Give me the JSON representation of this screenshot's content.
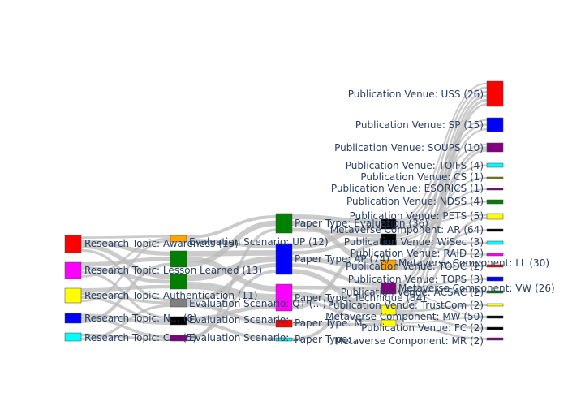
{
  "chart_data": {
    "type": "sankey",
    "columns": [
      {
        "nodes": [
          {
            "id": "rt_awareness",
            "label": "Research Topic: Awareness (15)",
            "color": "#ff0000"
          },
          {
            "id": "rt_lesson",
            "label": "Research Topic: Lesson Learned (13)",
            "color": "#ff00ff"
          },
          {
            "id": "rt_auth",
            "label": "Research Topic: Authentication (11)",
            "color": "#ffff00"
          },
          {
            "id": "rt_n",
            "label": "Research Topic: N… (8)",
            "color": "#0000ff"
          },
          {
            "id": "rt_c",
            "label": "Research Topic: C… (5)",
            "color": "#00ffff"
          }
        ]
      },
      {
        "nodes": [
          {
            "id": "es_up",
            "label": "Evaluation Scenario: UP (12)",
            "color": "#ffa500"
          },
          {
            "id": "es_g1",
            "label": "",
            "color": "#008000"
          },
          {
            "id": "es_g2",
            "label": "",
            "color": "#008000"
          },
          {
            "id": "es_qt",
            "label": "Evaluation Scenario: QT (…)",
            "color": "#808080"
          },
          {
            "id": "es_k",
            "label": "Evaluation Scenario: …",
            "color": "#000000"
          },
          {
            "id": "es_p",
            "label": "Evaluation Scenario: …",
            "color": "#800080"
          }
        ]
      },
      {
        "nodes": [
          {
            "id": "pt_eval",
            "label": "Paper Type: Evaluation (36)",
            "color": "#008000"
          },
          {
            "id": "pt_ap",
            "label": "Paper Type: AP (74)",
            "color": "#0000ff"
          },
          {
            "id": "pt_tech",
            "label": "Paper Type: Technique (34)",
            "color": "#ff00ff"
          },
          {
            "id": "pt_r",
            "label": "Paper Type: M…",
            "color": "#ff0000"
          },
          {
            "id": "pt_c",
            "label": "Paper Type: …",
            "color": "#00ffff"
          }
        ]
      },
      {
        "nodes": [
          {
            "id": "mc_k1",
            "label": "",
            "color": "#000000"
          },
          {
            "id": "mc_k2",
            "label": "",
            "color": "#000000"
          },
          {
            "id": "mc_ll",
            "label": "Metaverse Component: LL (30)",
            "color": "#ffa500"
          },
          {
            "id": "mc_vw",
            "label": "Metaverse Component: VW (26)",
            "color": "#800080"
          },
          {
            "id": "mc_y",
            "label": "",
            "color": "#ffff00"
          },
          {
            "id": "mc_y2",
            "label": "",
            "color": "#ffff00"
          }
        ]
      },
      {
        "nodes": [
          {
            "id": "pv_uss",
            "label": "Publication Venue: USS (26)",
            "color": "#ff0000"
          },
          {
            "id": "pv_sp",
            "label": "Publication Venue: SP (15)",
            "color": "#0000ff"
          },
          {
            "id": "pv_soups",
            "label": "Publication Venue: SOUPS (10)",
            "color": "#800080"
          },
          {
            "id": "pv_toifs",
            "label": "Publication Venue: TOIFS (4)",
            "color": "#00ffff"
          },
          {
            "id": "pv_cs",
            "label": "Publication Venue: CS (1)",
            "color": "#808000"
          },
          {
            "id": "pv_esorics",
            "label": "Publication Venue: ESORICS (1)",
            "color": "#800080"
          },
          {
            "id": "pv_ndss",
            "label": "Publication Venue: NDSS (4)",
            "color": "#008000"
          },
          {
            "id": "pv_pets",
            "label": "Publication Venue: PETS (5)",
            "color": "#ffff00"
          },
          {
            "id": "pv_ar",
            "label": "Metaverse Component: AR (64)",
            "color": "#000000"
          },
          {
            "id": "pv_wisec",
            "label": "Publication Venue: WiSec (3)",
            "color": "#00ffff"
          },
          {
            "id": "pv_raid",
            "label": "Publication Venue: RAID (2)",
            "color": "#ff00ff"
          },
          {
            "id": "pv_todc",
            "label": "Publication Venue: TODC (2)",
            "color": "#ff0000"
          },
          {
            "id": "pv_tops",
            "label": "Publication Venue: TOPS (3)",
            "color": "#0000ff"
          },
          {
            "id": "pv_acsac",
            "label": "Publication Venue: ACSAC (2)",
            "color": "#008000"
          },
          {
            "id": "pv_trustcom",
            "label": "Publication Venue: TrustCom (2)",
            "color": "#ffff00"
          },
          {
            "id": "pv_mw",
            "label": "Metaverse Component: MW (50)",
            "color": "#000000"
          },
          {
            "id": "pv_fc",
            "label": "Publication Venue: FC (2)",
            "color": "#000000"
          },
          {
            "id": "pv_mr",
            "label": "Metaverse Component: MR (2)",
            "color": "#800080"
          }
        ]
      }
    ],
    "links": [
      [
        "rt_awareness",
        "es_up"
      ],
      [
        "rt_awareness",
        "es_g1"
      ],
      [
        "rt_awareness",
        "es_g2"
      ],
      [
        "rt_awareness",
        "es_qt"
      ],
      [
        "rt_lesson",
        "es_g1"
      ],
      [
        "rt_lesson",
        "es_g2"
      ],
      [
        "rt_lesson",
        "es_k"
      ],
      [
        "rt_lesson",
        "es_up"
      ],
      [
        "rt_auth",
        "es_g2"
      ],
      [
        "rt_auth",
        "es_qt"
      ],
      [
        "rt_auth",
        "es_k"
      ],
      [
        "rt_auth",
        "es_up"
      ],
      [
        "rt_n",
        "es_k"
      ],
      [
        "rt_n",
        "es_p"
      ],
      [
        "rt_n",
        "es_g1"
      ],
      [
        "rt_c",
        "es_p"
      ],
      [
        "rt_c",
        "es_qt"
      ],
      [
        "es_up",
        "pt_eval"
      ],
      [
        "es_up",
        "pt_ap"
      ],
      [
        "es_g1",
        "pt_ap"
      ],
      [
        "es_g1",
        "pt_tech"
      ],
      [
        "es_g1",
        "pt_eval"
      ],
      [
        "es_g2",
        "pt_ap"
      ],
      [
        "es_g2",
        "pt_tech"
      ],
      [
        "es_qt",
        "pt_ap"
      ],
      [
        "es_qt",
        "pt_r"
      ],
      [
        "es_k",
        "pt_tech"
      ],
      [
        "es_k",
        "pt_c"
      ],
      [
        "es_p",
        "pt_ap"
      ],
      [
        "es_p",
        "pt_eval"
      ],
      [
        "pt_eval",
        "mc_k1"
      ],
      [
        "pt_eval",
        "mc_ll"
      ],
      [
        "pt_eval",
        "mc_k2"
      ],
      [
        "pt_ap",
        "mc_k1"
      ],
      [
        "pt_ap",
        "mc_k2"
      ],
      [
        "pt_ap",
        "mc_ll"
      ],
      [
        "pt_ap",
        "mc_vw"
      ],
      [
        "pt_ap",
        "mc_y"
      ],
      [
        "pt_tech",
        "mc_vw"
      ],
      [
        "pt_tech",
        "mc_y"
      ],
      [
        "pt_tech",
        "mc_y2"
      ],
      [
        "pt_tech",
        "mc_k2"
      ],
      [
        "pt_r",
        "mc_y2"
      ],
      [
        "pt_c",
        "mc_vw"
      ],
      [
        "mc_k1",
        "pv_uss"
      ],
      [
        "mc_k1",
        "pv_sp"
      ],
      [
        "mc_k1",
        "pv_soups"
      ],
      [
        "mc_k1",
        "pv_toifs"
      ],
      [
        "mc_k1",
        "pv_ndss"
      ],
      [
        "mc_k1",
        "pv_pets"
      ],
      [
        "mc_k2",
        "pv_uss"
      ],
      [
        "mc_k2",
        "pv_sp"
      ],
      [
        "mc_k2",
        "pv_cs"
      ],
      [
        "mc_k2",
        "pv_esorics"
      ],
      [
        "mc_k2",
        "pv_wisec"
      ],
      [
        "mc_k2",
        "pv_raid"
      ],
      [
        "mc_ll",
        "pv_uss"
      ],
      [
        "mc_ll",
        "pv_sp"
      ],
      [
        "mc_ll",
        "pv_soups"
      ],
      [
        "mc_ll",
        "pv_ar"
      ],
      [
        "mc_ll",
        "pv_todc"
      ],
      [
        "mc_vw",
        "pv_uss"
      ],
      [
        "mc_vw",
        "pv_soups"
      ],
      [
        "mc_vw",
        "pv_tops"
      ],
      [
        "mc_vw",
        "pv_acsac"
      ],
      [
        "mc_vw",
        "pv_mw"
      ],
      [
        "mc_y",
        "pv_uss"
      ],
      [
        "mc_y",
        "pv_pets"
      ],
      [
        "mc_y",
        "pv_trustcom"
      ],
      [
        "mc_y",
        "pv_fc"
      ],
      [
        "mc_y2",
        "pv_uss"
      ],
      [
        "mc_y2",
        "pv_mw"
      ],
      [
        "mc_y2",
        "pv_mr"
      ]
    ]
  }
}
